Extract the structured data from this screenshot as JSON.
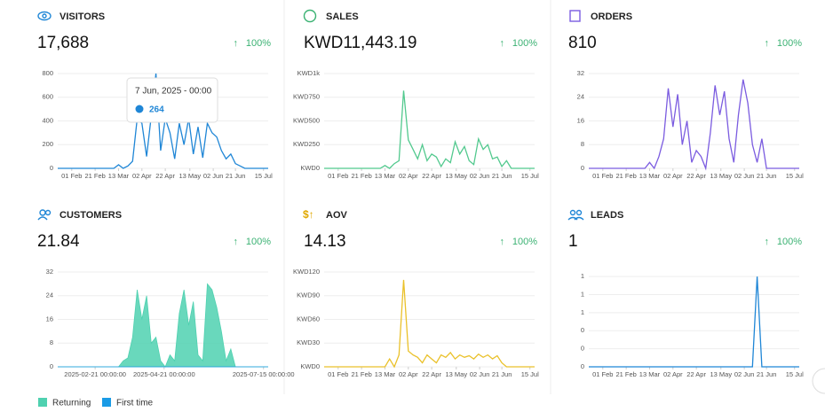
{
  "chart_data": [
    {
      "type": "line",
      "title": "VISITORS",
      "metric": "17,688",
      "change": "100%",
      "x": [
        20,
        24,
        28,
        32,
        36,
        40,
        44,
        48,
        52,
        56,
        60,
        64,
        68,
        72,
        76,
        80,
        84,
        88,
        92,
        96,
        100,
        104,
        108,
        112,
        116,
        120,
        124,
        128,
        132,
        136,
        140,
        144,
        148,
        152,
        156,
        160,
        164,
        168,
        172,
        176,
        180,
        184,
        188,
        192,
        196,
        200
      ],
      "series": [
        {
          "name": "Visitors",
          "color": "#1f86d6",
          "values": [
            0,
            0,
            0,
            0,
            0,
            0,
            0,
            0,
            0,
            0,
            0,
            0,
            0,
            30,
            0,
            20,
            60,
            420,
            380,
            100,
            440,
            800,
            150,
            420,
            300,
            80,
            380,
            200,
            420,
            120,
            350,
            90,
            380,
            300,
            264,
            150,
            80,
            120,
            40,
            20,
            0,
            0,
            0,
            0,
            0,
            0
          ]
        }
      ],
      "xlim": [
        20,
        200
      ],
      "xticks": [
        {
          "value": 32,
          "label": "01 Feb"
        },
        {
          "value": 52,
          "label": "21 Feb"
        },
        {
          "value": 72,
          "label": "13 Mar"
        },
        {
          "value": 92,
          "label": "02 Apr"
        },
        {
          "value": 112,
          "label": "22 Apr"
        },
        {
          "value": 133,
          "label": "13 May"
        },
        {
          "value": 153,
          "label": "02 Jun"
        },
        {
          "value": 172,
          "label": "21 Jun"
        },
        {
          "value": 196,
          "label": "15 Jul"
        }
      ],
      "ylim": [
        0,
        800
      ],
      "yticks": [
        0,
        200,
        400,
        600,
        800
      ],
      "tooltip": {
        "title": "7 Jun, 2025 - 00:00",
        "value": 264
      }
    },
    {
      "type": "line",
      "title": "SALES",
      "metric": "KWD11,443.19",
      "change": "100%",
      "x": [
        20,
        24,
        28,
        32,
        36,
        40,
        44,
        48,
        52,
        56,
        60,
        64,
        68,
        72,
        76,
        80,
        84,
        88,
        92,
        96,
        100,
        104,
        108,
        112,
        116,
        120,
        124,
        128,
        132,
        136,
        140,
        144,
        148,
        152,
        156,
        160,
        164,
        168,
        172,
        176,
        180,
        184,
        188,
        192,
        196,
        200
      ],
      "series": [
        {
          "name": "Sales",
          "color": "#52c98e",
          "values": [
            0,
            0,
            0,
            0,
            0,
            0,
            0,
            0,
            0,
            0,
            0,
            0,
            0,
            30,
            0,
            50,
            80,
            820,
            300,
            200,
            100,
            250,
            80,
            150,
            120,
            20,
            100,
            60,
            280,
            150,
            230,
            80,
            40,
            310,
            200,
            250,
            100,
            120,
            20,
            80,
            0,
            0,
            0,
            0,
            0,
            0
          ]
        }
      ],
      "xlim": [
        20,
        200
      ],
      "xticks": [
        {
          "value": 32,
          "label": "01 Feb"
        },
        {
          "value": 52,
          "label": "21 Feb"
        },
        {
          "value": 72,
          "label": "13 Mar"
        },
        {
          "value": 92,
          "label": "02 Apr"
        },
        {
          "value": 112,
          "label": "22 Apr"
        },
        {
          "value": 133,
          "label": "13 May"
        },
        {
          "value": 153,
          "label": "02 Jun"
        },
        {
          "value": 172,
          "label": "21 Jun"
        },
        {
          "value": 196,
          "label": "15 Jul"
        }
      ],
      "ylim": [
        0,
        1000
      ],
      "yticks": [
        {
          "value": 0,
          "label": "KWD0"
        },
        {
          "value": 250,
          "label": "KWD250"
        },
        {
          "value": 500,
          "label": "KWD500"
        },
        {
          "value": 750,
          "label": "KWD750"
        },
        {
          "value": 1000,
          "label": "KWD1k"
        }
      ]
    },
    {
      "type": "line",
      "title": "ORDERS",
      "metric": "810",
      "change": "100%",
      "x": [
        20,
        24,
        28,
        32,
        36,
        40,
        44,
        48,
        52,
        56,
        60,
        64,
        68,
        72,
        76,
        80,
        84,
        88,
        92,
        96,
        100,
        104,
        108,
        112,
        116,
        120,
        124,
        128,
        132,
        136,
        140,
        144,
        148,
        152,
        156,
        160,
        164,
        168,
        172,
        176,
        180,
        184,
        188,
        192,
        196,
        200
      ],
      "series": [
        {
          "name": "Orders",
          "color": "#7b5ce0",
          "values": [
            0,
            0,
            0,
            0,
            0,
            0,
            0,
            0,
            0,
            0,
            0,
            0,
            0,
            2,
            0,
            4,
            10,
            27,
            14,
            25,
            8,
            16,
            2,
            6,
            4,
            0,
            12,
            28,
            18,
            26,
            10,
            2,
            18,
            30,
            22,
            8,
            2,
            10,
            0,
            0,
            0,
            0,
            0,
            0,
            0,
            0
          ]
        }
      ],
      "xlim": [
        20,
        200
      ],
      "xticks": [
        {
          "value": 32,
          "label": "01 Feb"
        },
        {
          "value": 52,
          "label": "21 Feb"
        },
        {
          "value": 72,
          "label": "13 Mar"
        },
        {
          "value": 92,
          "label": "02 Apr"
        },
        {
          "value": 112,
          "label": "22 Apr"
        },
        {
          "value": 133,
          "label": "13 May"
        },
        {
          "value": 153,
          "label": "02 Jun"
        },
        {
          "value": 172,
          "label": "21 Jun"
        },
        {
          "value": 196,
          "label": "15 Jul"
        }
      ],
      "ylim": [
        0,
        32
      ],
      "yticks": [
        0,
        8,
        16,
        24,
        32
      ]
    },
    {
      "type": "area",
      "title": "CUSTOMERS",
      "metric": "21.84",
      "change": "100%",
      "x": [
        20,
        24,
        28,
        32,
        36,
        40,
        44,
        48,
        52,
        56,
        60,
        64,
        68,
        72,
        76,
        80,
        84,
        88,
        92,
        96,
        100,
        104,
        108,
        112,
        116,
        120,
        124,
        128,
        132,
        136,
        140,
        144,
        148,
        152,
        156,
        160,
        164,
        168,
        172,
        176,
        180,
        184,
        188,
        192,
        196,
        200
      ],
      "series": [
        {
          "name": "Returning",
          "color": "#4fd1b0",
          "values": [
            0,
            0,
            0,
            0,
            0,
            0,
            0,
            0,
            0,
            0,
            0,
            0,
            0,
            0,
            2,
            3,
            10,
            26,
            16,
            24,
            8,
            10,
            2,
            0,
            4,
            2,
            18,
            26,
            14,
            22,
            4,
            2,
            28,
            26,
            20,
            12,
            2,
            6,
            0,
            0,
            0,
            0,
            0,
            0,
            0,
            0
          ]
        },
        {
          "name": "First time",
          "color": "#1a9be6",
          "values": [
            0,
            0,
            0,
            0,
            0,
            0,
            0,
            0,
            0,
            0,
            0,
            0,
            0,
            0,
            0,
            0,
            0,
            0,
            0,
            0,
            0,
            0,
            0,
            0,
            0,
            0,
            0,
            0,
            0,
            0,
            0,
            0,
            0,
            0,
            0,
            0,
            0,
            0,
            0,
            0,
            0,
            0,
            0,
            0,
            0,
            0
          ]
        }
      ],
      "xlim": [
        20,
        200
      ],
      "xticks": [
        {
          "value": 52,
          "label": "2025-02-21 00:00:00"
        },
        {
          "value": 111,
          "label": "2025-04-21 00:00:00"
        },
        {
          "value": 196,
          "label": "2025-07-15 00:00:00"
        }
      ],
      "ylim": [
        0,
        32
      ],
      "yticks": [
        0,
        8,
        16,
        24,
        32
      ]
    },
    {
      "type": "line",
      "title": "AOV",
      "metric": "14.13",
      "change": "100%",
      "x": [
        20,
        24,
        28,
        32,
        36,
        40,
        44,
        48,
        52,
        56,
        60,
        64,
        68,
        72,
        76,
        80,
        84,
        88,
        92,
        96,
        100,
        104,
        108,
        112,
        116,
        120,
        124,
        128,
        132,
        136,
        140,
        144,
        148,
        152,
        156,
        160,
        164,
        168,
        172,
        176,
        180,
        184,
        188,
        192,
        196,
        200
      ],
      "series": [
        {
          "name": "AOV",
          "color": "#eac12a",
          "values": [
            0,
            0,
            0,
            0,
            0,
            0,
            0,
            0,
            0,
            0,
            0,
            0,
            0,
            0,
            10,
            0,
            15,
            110,
            20,
            15,
            12,
            5,
            15,
            10,
            5,
            15,
            12,
            18,
            10,
            15,
            12,
            14,
            10,
            16,
            12,
            15,
            10,
            14,
            5,
            0,
            0,
            0,
            0,
            0,
            0,
            0
          ]
        }
      ],
      "xlim": [
        20,
        200
      ],
      "xticks": [
        {
          "value": 32,
          "label": "01 Feb"
        },
        {
          "value": 52,
          "label": "21 Feb"
        },
        {
          "value": 72,
          "label": "13 Mar"
        },
        {
          "value": 92,
          "label": "02 Apr"
        },
        {
          "value": 112,
          "label": "22 Apr"
        },
        {
          "value": 133,
          "label": "13 May"
        },
        {
          "value": 153,
          "label": "02 Jun"
        },
        {
          "value": 172,
          "label": "21 Jun"
        },
        {
          "value": 196,
          "label": "15 Jul"
        }
      ],
      "ylim": [
        0,
        120
      ],
      "yticks": [
        {
          "value": 0,
          "label": "KWD0"
        },
        {
          "value": 30,
          "label": "KWD30"
        },
        {
          "value": 60,
          "label": "KWD60"
        },
        {
          "value": 90,
          "label": "KWD90"
        },
        {
          "value": 120,
          "label": "KWD120"
        }
      ]
    },
    {
      "type": "line",
      "title": "LEADS",
      "metric": "1",
      "change": "100%",
      "x": [
        20,
        24,
        28,
        32,
        36,
        40,
        44,
        48,
        52,
        56,
        60,
        64,
        68,
        72,
        76,
        80,
        84,
        88,
        92,
        96,
        100,
        104,
        108,
        112,
        116,
        120,
        124,
        128,
        132,
        136,
        140,
        144,
        148,
        152,
        156,
        160,
        164,
        168,
        172,
        176,
        180,
        184,
        188,
        192,
        196,
        200
      ],
      "series": [
        {
          "name": "Leads",
          "color": "#1f86d6",
          "values": [
            0,
            0,
            0,
            0,
            0,
            0,
            0,
            0,
            0,
            0,
            0,
            0,
            0,
            0,
            0,
            0,
            0,
            0,
            0,
            0,
            0,
            0,
            0,
            0,
            0,
            0,
            0,
            0,
            0,
            0,
            0,
            0,
            0,
            0,
            0,
            0,
            1,
            0,
            0,
            0,
            0,
            0,
            0,
            0,
            0,
            0
          ]
        }
      ],
      "xlim": [
        20,
        200
      ],
      "xticks": [
        {
          "value": 32,
          "label": "01 Feb"
        },
        {
          "value": 52,
          "label": "21 Feb"
        },
        {
          "value": 72,
          "label": "13 Mar"
        },
        {
          "value": 92,
          "label": "02 Apr"
        },
        {
          "value": 112,
          "label": "22 Apr"
        },
        {
          "value": 133,
          "label": "13 May"
        },
        {
          "value": 153,
          "label": "02 Jun"
        },
        {
          "value": 172,
          "label": "21 Jun"
        },
        {
          "value": 196,
          "label": "15 Jul"
        }
      ],
      "ylim": [
        0,
        1.05
      ],
      "yticks": [
        {
          "value": 0,
          "label": "0"
        },
        {
          "value": 0.2,
          "label": "0"
        },
        {
          "value": 0.4,
          "label": "0"
        },
        {
          "value": 0.6,
          "label": "1"
        },
        {
          "value": 0.8,
          "label": "1"
        },
        {
          "value": 1,
          "label": "1"
        }
      ]
    }
  ]
}
